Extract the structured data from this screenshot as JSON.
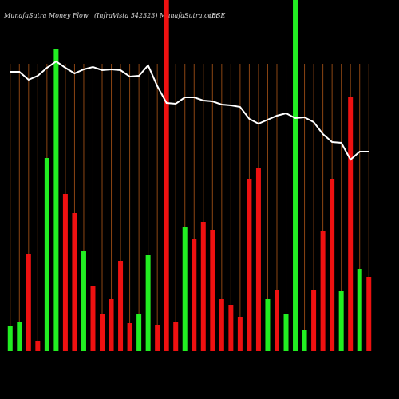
{
  "chart_data": {
    "type": "bar",
    "title": "MunafaSutra  Money Flow",
    "subtitle": "(InfraVista 542323) MunafaSutra.com",
    "exchange": "(BSE",
    "categories": [
      null,
      null,
      null,
      null,
      null,
      null,
      null,
      null,
      null,
      null,
      null,
      null,
      null,
      null,
      null,
      null,
      null,
      null,
      null,
      null,
      null,
      null,
      null,
      null,
      null,
      null,
      null,
      null,
      null,
      null,
      null,
      null,
      null,
      null,
      null,
      null,
      null,
      null,
      null,
      null
    ],
    "series": [
      {
        "name": "Money flow",
        "values": [
          32,
          36,
          122,
          13,
          242,
          378,
          197,
          173,
          126,
          81,
          47,
          65,
          113,
          35,
          47,
          120,
          33,
          440,
          36,
          155,
          140,
          162,
          152,
          65,
          58,
          43,
          216,
          230,
          65,
          76,
          47,
          440,
          26,
          77,
          151,
          216,
          75,
          318,
          103,
          93
        ],
        "colors": [
          "#22ee22",
          "#22ee22",
          "#ee1111",
          "#ee1111",
          "#22ee22",
          "#22ee22",
          "#ee1111",
          "#ee1111",
          "#22ee22",
          "#ee1111",
          "#ee1111",
          "#ee1111",
          "#ee1111",
          "#ee1111",
          "#22ee22",
          "#22ee22",
          "#ee1111",
          "#ee1111",
          "#ee1111",
          "#22ee22",
          "#ee1111",
          "#ee1111",
          "#ee1111",
          "#ee1111",
          "#ee1111",
          "#ee1111",
          "#ee1111",
          "#ee1111",
          "#22ee22",
          "#ee1111",
          "#22ee22",
          "#22ee22",
          "#22ee22",
          "#ee1111",
          "#ee1111",
          "#ee1111",
          "#22ee22",
          "#ee1111",
          "#22ee22",
          "#ee1111"
        ]
      },
      {
        "name": "Price",
        "type": "line",
        "color": "#ffffff",
        "values": [
          350,
          350,
          340,
          345,
          355,
          363,
          355,
          348,
          353,
          356,
          352,
          353,
          352,
          344,
          345,
          358,
          332,
          311,
          310,
          318,
          318,
          314,
          313,
          309,
          308,
          306,
          291,
          285,
          290,
          295,
          298,
          292,
          293,
          287,
          272,
          262,
          261,
          240,
          250,
          250
        ]
      }
    ],
    "ylim": [
      0,
      440
    ],
    "grid": true,
    "grid_color": "#8b4513"
  }
}
